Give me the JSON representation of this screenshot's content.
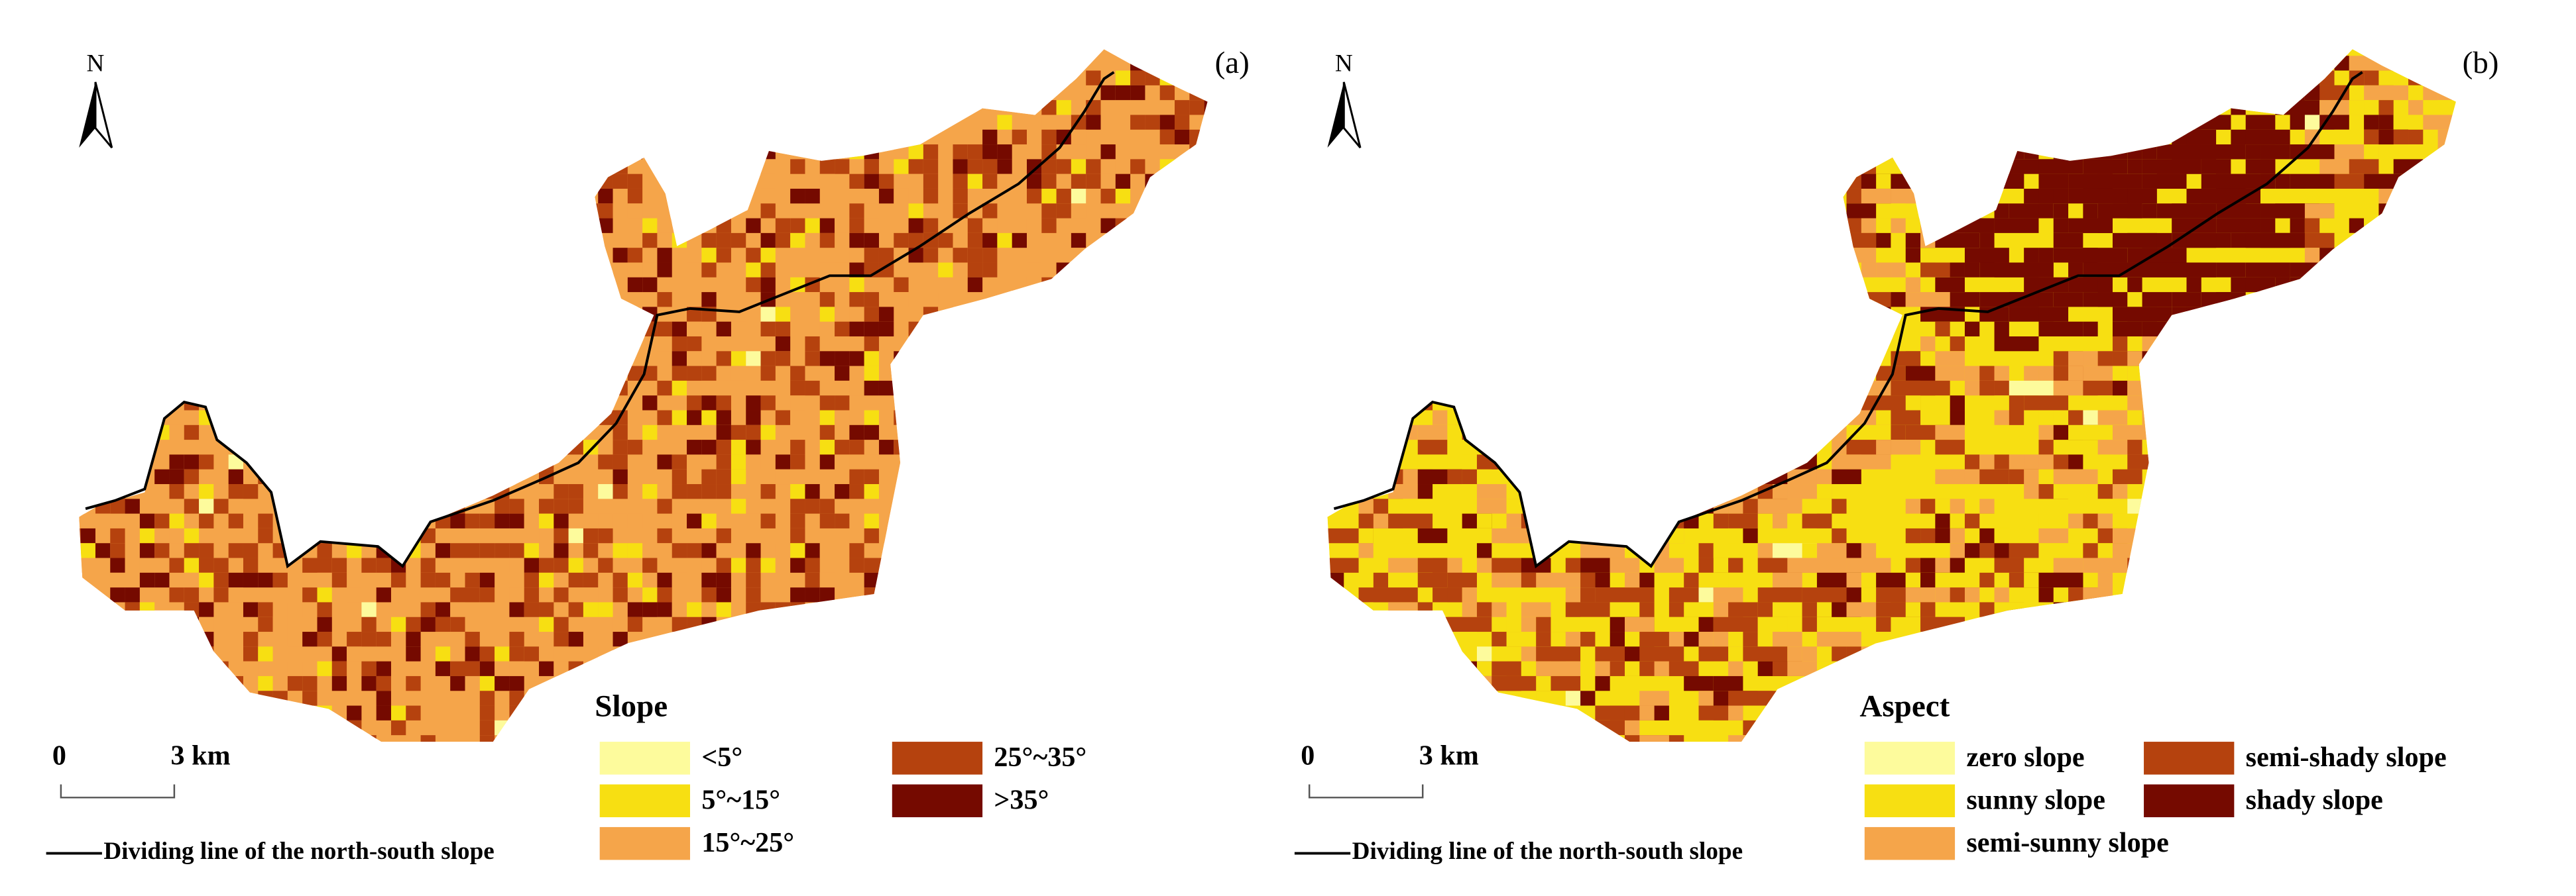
{
  "panels": [
    {
      "label": "(a)",
      "north": "N",
      "scale_bar": {
        "start": "0",
        "end": "3 km"
      },
      "dividing_line": "Dividing line of the north-south slope",
      "legend": {
        "title": "Slope",
        "items": [
          {
            "label": "<5°",
            "color": "#fdfb9c"
          },
          {
            "label": "5°~15°",
            "color": "#f7df12"
          },
          {
            "label": "15°~25°",
            "color": "#f5a54a"
          },
          {
            "label": "25°~35°",
            "color": "#b5420e"
          },
          {
            "label": ">35°",
            "color": "#750a00"
          }
        ]
      }
    },
    {
      "label": "(b)",
      "north": "N",
      "scale_bar": {
        "start": "0",
        "end": "3 km"
      },
      "dividing_line": "Dividing line of the north-south slope",
      "legend": {
        "title": "Aspect",
        "items": [
          {
            "label": "zero slope",
            "color": "#fdfb9c"
          },
          {
            "label": "sunny slope",
            "color": "#f7df12"
          },
          {
            "label": "semi-sunny slope",
            "color": "#f5a54a"
          },
          {
            "label": "semi-shady slope",
            "color": "#b5420e"
          },
          {
            "label": "shady slope",
            "color": "#750a00"
          }
        ]
      }
    }
  ]
}
